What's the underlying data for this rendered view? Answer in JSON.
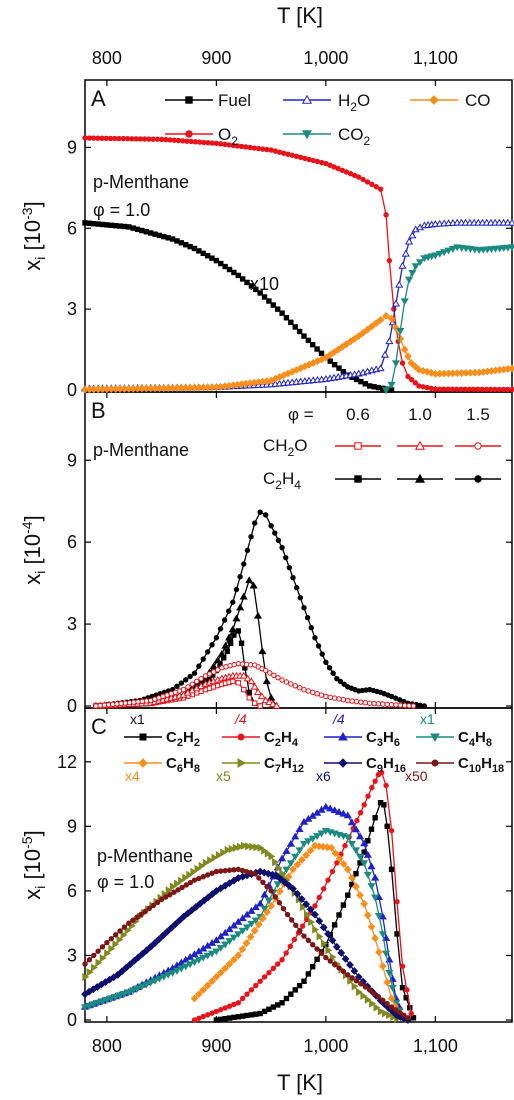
{
  "chart_data": {
    "type": "line",
    "x_axis": {
      "label": "T [K]",
      "range": [
        780,
        1170
      ],
      "ticks": [
        800,
        900,
        1000,
        1100
      ],
      "tick_labels": [
        "800",
        "900",
        "1,000",
        "1,100"
      ]
    },
    "panels": [
      {
        "id": "A",
        "letter": "A",
        "annotation": [
          "p-Menthane",
          "φ = 1.0"
        ],
        "ylabel": "x_i [10^-3]",
        "ylabel_base": "x",
        "ylabel_sub": "i",
        "ylabel_unit": "[10",
        "ylabel_exp": "-3",
        "ylabel_close": "]",
        "ylim": [
          0,
          11.5
        ],
        "yticks": [
          0,
          3,
          6,
          9
        ],
        "scale_note": "x10",
        "series": [
          {
            "key": "fuel",
            "name": "Fuel",
            "color": "#000000",
            "marker": "square",
            "x": [
              780,
              820,
              860,
              880,
              900,
              920,
              940,
              960,
              980,
              1000,
              1020,
              1040,
              1060
            ],
            "y": [
              6.2,
              6.05,
              5.6,
              5.25,
              4.8,
              4.25,
              3.6,
              2.85,
              2.0,
              1.2,
              0.55,
              0.15,
              0.0
            ]
          },
          {
            "key": "o2",
            "name": "O2",
            "color": "#e8141b",
            "marker": "circle",
            "x": [
              780,
              850,
              900,
              950,
              1000,
              1030,
              1050,
              1055,
              1058,
              1062,
              1066,
              1070,
              1075,
              1085,
              1100,
              1170
            ],
            "y": [
              9.35,
              9.3,
              9.15,
              8.9,
              8.4,
              7.9,
              7.45,
              6.5,
              4.8,
              3.0,
              1.8,
              1.0,
              0.5,
              0.15,
              0.03,
              0.02
            ]
          },
          {
            "key": "h2o",
            "name": "H2O",
            "color": "#1f22c7",
            "marker": "triangle-up-open",
            "x": [
              780,
              900,
              950,
              1000,
              1030,
              1050,
              1058,
              1064,
              1070,
              1076,
              1082,
              1090,
              1100,
              1120,
              1170
            ],
            "y": [
              0.05,
              0.1,
              0.2,
              0.4,
              0.6,
              0.8,
              1.8,
              3.2,
              4.6,
              5.5,
              5.95,
              6.1,
              6.15,
              6.2,
              6.2
            ]
          },
          {
            "key": "co",
            "name": "CO",
            "color": "#f78f1e",
            "marker": "diamond",
            "x": [
              780,
              900,
              950,
              1000,
              1030,
              1050,
              1055,
              1060,
              1064,
              1068,
              1072,
              1078,
              1085,
              1100,
              1140,
              1170
            ],
            "y": [
              0.02,
              0.1,
              0.35,
              1.2,
              2.0,
              2.6,
              2.75,
              2.65,
              2.3,
              1.9,
              1.5,
              1.0,
              0.75,
              0.6,
              0.65,
              0.8
            ]
          },
          {
            "key": "co2",
            "name": "CO2",
            "color": "#1b8b80",
            "marker": "triangle-down",
            "x": [
              1055,
              1060,
              1064,
              1068,
              1072,
              1076,
              1082,
              1090,
              1100,
              1120,
              1140,
              1170
            ],
            "y": [
              0.0,
              0.2,
              1.0,
              2.2,
              3.3,
              4.1,
              4.6,
              4.9,
              5.0,
              5.3,
              5.2,
              5.3
            ]
          }
        ],
        "legend_labels": {
          "fuel": "Fuel",
          "h2o_base": "H",
          "h2o_sub": "2",
          "h2o_end": "O",
          "co": "CO",
          "o2_base": "O",
          "o2_sub": "2",
          "co2_base": "CO",
          "co2_sub": "2"
        }
      },
      {
        "id": "B",
        "letter": "B",
        "annotation": [
          "p-Menthane"
        ],
        "ylabel": "x_i [10^-4]",
        "ylabel_base": "x",
        "ylabel_sub": "i",
        "ylabel_unit": "[10",
        "ylabel_exp": "-4",
        "ylabel_close": "]",
        "ylim": [
          0,
          11.5
        ],
        "yticks": [
          0,
          3,
          6,
          9
        ],
        "phi_header": "φ =",
        "phi_values": [
          "0.6",
          "1.0",
          "1.5"
        ],
        "row_labels": {
          "ch2o_a": "CH",
          "ch2o_b": "2",
          "ch2o_c": "O",
          "c2h4_a": "C",
          "c2h4_b": "2",
          "c2h4_c": "H",
          "c2h4_d": "4"
        },
        "series": [
          {
            "key": "c2h4_06",
            "name": "C2H4 φ=0.6",
            "color": "#000000",
            "marker": "square",
            "x": [
              790,
              840,
              870,
              890,
              900,
              910,
              916,
              920,
              923,
              926,
              930,
              935,
              940
            ],
            "y": [
              0.0,
              0.1,
              0.35,
              0.8,
              1.3,
              2.0,
              2.6,
              2.75,
              2.3,
              1.4,
              0.5,
              0.1,
              0.0
            ]
          },
          {
            "key": "c2h4_10",
            "name": "C2H4 φ=1.0",
            "color": "#000000",
            "marker": "triangle-up",
            "x": [
              790,
              840,
              870,
              890,
              905,
              915,
              925,
              930,
              934,
              938,
              942,
              946,
              950,
              955
            ],
            "y": [
              0.0,
              0.1,
              0.4,
              1.0,
              1.9,
              2.8,
              4.0,
              4.6,
              4.4,
              3.3,
              2.0,
              0.9,
              0.3,
              0.0
            ]
          },
          {
            "key": "c2h4_15",
            "name": "C2H4 φ=1.5",
            "color": "#000000",
            "marker": "circle",
            "x": [
              790,
              830,
              860,
              880,
              900,
              915,
              925,
              935,
              940,
              945,
              950,
              960,
              970,
              980,
              990,
              1000,
              1010,
              1020,
              1030,
              1040,
              1050,
              1060,
              1075,
              1090
            ],
            "y": [
              0.0,
              0.2,
              0.6,
              1.2,
              2.5,
              3.8,
              5.2,
              6.7,
              7.1,
              7.0,
              6.6,
              5.8,
              4.7,
              3.6,
              2.5,
              1.6,
              1.0,
              0.7,
              0.55,
              0.6,
              0.5,
              0.35,
              0.1,
              0.0
            ]
          },
          {
            "key": "ch2o_06",
            "name": "CH2O φ=0.6",
            "color": "#e8141b",
            "marker": "square-open",
            "x": [
              790,
              840,
              870,
              890,
              905,
              915,
              920,
              925,
              930,
              935,
              940
            ],
            "y": [
              0.0,
              0.1,
              0.3,
              0.6,
              0.8,
              0.9,
              0.85,
              0.6,
              0.3,
              0.1,
              0.0
            ]
          },
          {
            "key": "ch2o_10",
            "name": "CH2O φ=1.0",
            "color": "#e8141b",
            "marker": "triangle-up-open",
            "x": [
              790,
              840,
              870,
              890,
              905,
              915,
              925,
              932,
              938,
              945,
              955
            ],
            "y": [
              0.0,
              0.1,
              0.4,
              0.8,
              1.0,
              1.1,
              1.1,
              0.9,
              0.5,
              0.2,
              0.0
            ]
          },
          {
            "key": "ch2o_15",
            "name": "CH2O φ=1.5",
            "color": "#e8141b",
            "marker": "circle-open",
            "x": [
              790,
              840,
              870,
              890,
              905,
              920,
              935,
              945,
              960,
              980,
              1000,
              1020,
              1040,
              1060,
              1080
            ],
            "y": [
              0.0,
              0.2,
              0.6,
              1.1,
              1.4,
              1.55,
              1.5,
              1.3,
              0.95,
              0.6,
              0.35,
              0.2,
              0.1,
              0.05,
              0.0
            ]
          }
        ]
      },
      {
        "id": "C",
        "letter": "C",
        "annotation": [
          "p-Menthane",
          "φ = 1.0"
        ],
        "ylabel": "x_i [10^-5]",
        "ylabel_base": "x",
        "ylabel_sub": "i",
        "ylabel_unit": "[10",
        "ylabel_exp": "-5",
        "ylabel_close": "]",
        "ylim": [
          0,
          14.5
        ],
        "yticks": [
          0,
          3,
          6,
          9,
          12
        ],
        "series": [
          {
            "key": "c2h2",
            "name": "C2H2",
            "mult": "x1",
            "color": "#000000",
            "marker": "square",
            "x": [
              900,
              940,
              960,
              980,
              1000,
              1020,
              1035,
              1045,
              1050,
              1053,
              1056,
              1060,
              1065,
              1070,
              1080
            ],
            "y": [
              0.0,
              0.3,
              0.8,
              1.8,
              3.5,
              5.8,
              7.8,
              9.4,
              10.1,
              10.0,
              9.0,
              7.0,
              4.0,
              1.5,
              0.1
            ]
          },
          {
            "key": "c2h4",
            "name": "C2H4",
            "mult": "/4",
            "color": "#e8141b",
            "marker": "circle",
            "x": [
              880,
              920,
              960,
              990,
              1010,
              1025,
              1035,
              1042,
              1048,
              1051,
              1055,
              1060,
              1065,
              1070,
              1078
            ],
            "y": [
              0.0,
              0.8,
              2.8,
              5.3,
              7.3,
              8.9,
              10.0,
              10.8,
              11.4,
              11.5,
              10.9,
              8.8,
              5.5,
              2.5,
              0.3
            ]
          },
          {
            "key": "c3h6",
            "name": "C3H6",
            "mult": "/4",
            "color": "#1f22c7",
            "marker": "triangle-up",
            "x": [
              780,
              820,
              860,
              900,
              940,
              960,
              980,
              1000,
              1020,
              1035,
              1045,
              1052,
              1058,
              1064,
              1070
            ],
            "y": [
              0.6,
              1.3,
              2.4,
              3.7,
              5.4,
              7.5,
              9.2,
              9.9,
              9.5,
              8.2,
              6.6,
              4.8,
              2.8,
              1.0,
              0.2
            ]
          },
          {
            "key": "c4h8",
            "name": "C4H8",
            "mult": "x1",
            "color": "#1b8b80",
            "marker": "triangle-down",
            "x": [
              780,
              820,
              860,
              900,
              940,
              960,
              980,
              1000,
              1020,
              1035,
              1045,
              1052,
              1058,
              1064,
              1070
            ],
            "y": [
              0.6,
              1.3,
              2.2,
              3.2,
              4.8,
              6.7,
              8.2,
              8.8,
              8.5,
              7.3,
              5.7,
              4.0,
              2.2,
              0.8,
              0.1
            ]
          },
          {
            "key": "c6h8",
            "name": "C6H8",
            "mult": "x4",
            "color": "#f78f1e",
            "marker": "diamond",
            "x": [
              880,
              920,
              950,
              970,
              990,
              1005,
              1020,
              1035,
              1045,
              1052,
              1060,
              1066,
              1072
            ],
            "y": [
              1.0,
              3.0,
              5.3,
              7.0,
              8.1,
              8.0,
              7.0,
              5.4,
              3.8,
              2.5,
              1.0,
              0.3,
              0.05
            ]
          },
          {
            "key": "c7h12",
            "name": "C7H12",
            "mult": "x5",
            "color": "#808a1e",
            "marker": "triangle-right",
            "x": [
              780,
              800,
              830,
              860,
              890,
              910,
              925,
              940,
              950,
              960,
              975,
              990,
              1010,
              1030,
              1050,
              1065
            ],
            "y": [
              2.0,
              3.1,
              4.8,
              6.2,
              7.3,
              7.9,
              8.1,
              8.0,
              7.6,
              6.8,
              5.6,
              4.2,
              2.6,
              1.3,
              0.4,
              0.05
            ]
          },
          {
            "key": "c9h16",
            "name": "C9H16",
            "mult": "x6",
            "color": "#0e0e6e",
            "marker": "diamond",
            "x": [
              780,
              810,
              840,
              870,
              900,
              920,
              940,
              955,
              970,
              990,
              1010,
              1030,
              1050,
              1065,
              1075
            ],
            "y": [
              1.2,
              2.1,
              3.4,
              4.8,
              6.0,
              6.6,
              6.9,
              6.7,
              6.1,
              4.9,
              3.4,
              2.0,
              0.9,
              0.2,
              0.0
            ]
          },
          {
            "key": "c10h18",
            "name": "C10H18",
            "mult": "x50",
            "color": "#7b1717",
            "marker": "circle",
            "x": [
              780,
              800,
              820,
              850,
              880,
              900,
              920,
              935,
              950,
              965,
              980,
              1000,
              1020,
              1040,
              1060,
              1075
            ],
            "y": [
              2.6,
              3.6,
              4.5,
              5.6,
              6.5,
              6.9,
              7.0,
              6.8,
              6.0,
              4.9,
              3.9,
              2.9,
              2.1,
              1.4,
              0.6,
              0.1
            ]
          }
        ],
        "legend_names": {
          "c2h2": [
            "C",
            "2",
            "H",
            "2"
          ],
          "c2h4": [
            "C",
            "2",
            "H",
            "4"
          ],
          "c3h6": [
            "C",
            "3",
            "H",
            "6"
          ],
          "c4h8": [
            "C",
            "4",
            "H",
            "8"
          ],
          "c6h8": [
            "C",
            "6",
            "H",
            "8"
          ],
          "c7h12": [
            "C",
            "7",
            "H",
            "12"
          ],
          "c9h16": [
            "C",
            "9",
            "H",
            "16"
          ],
          "c10h18": [
            "C",
            "10",
            "H",
            "18"
          ]
        }
      }
    ]
  }
}
